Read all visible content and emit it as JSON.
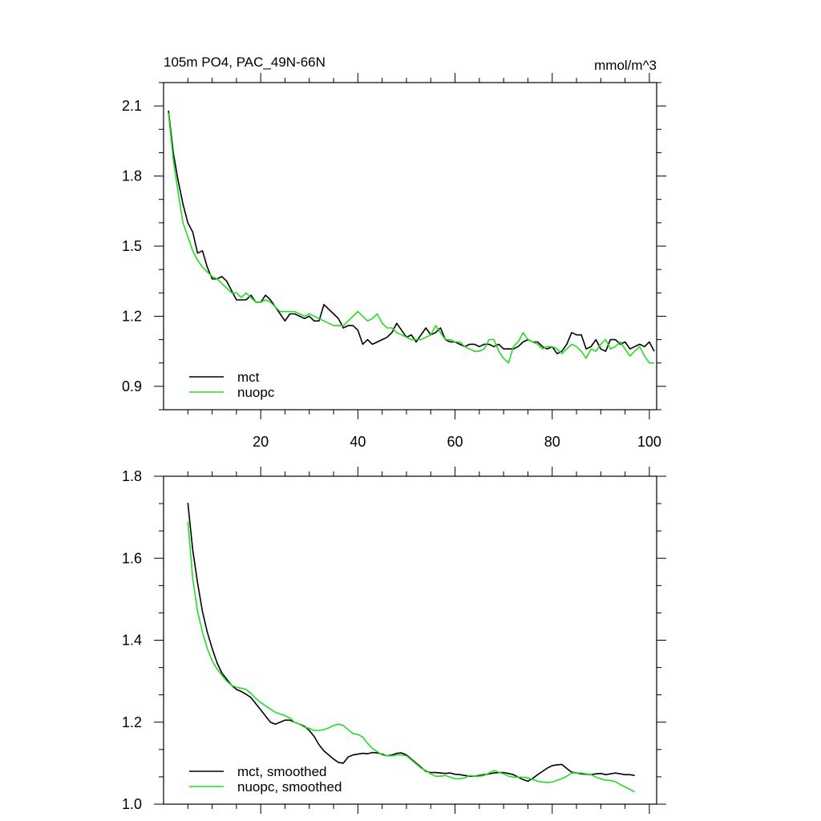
{
  "chart_data": [
    {
      "type": "line",
      "title": "105m PO4, PAC_49N-66N",
      "units": "mmol/m^3",
      "xlim": [
        0,
        101.5
      ],
      "ylim": [
        0.8,
        2.2
      ],
      "xticks": [
        20,
        40,
        60,
        80,
        100
      ],
      "xtick_labels": [
        "20",
        "40",
        "60",
        "80",
        "100"
      ],
      "yticks": [
        0.9,
        1.2,
        1.5,
        1.8,
        2.1
      ],
      "ytick_labels": [
        "0.9",
        "1.2",
        "1.5",
        "1.8",
        "2.1"
      ],
      "legend": [
        "mct",
        "nuopc"
      ],
      "series": [
        {
          "name": "mct",
          "color": "#000000",
          "x": [
            1,
            2,
            3,
            4,
            5,
            6,
            7,
            8,
            9,
            10,
            11,
            12,
            13,
            14,
            15,
            16,
            17,
            18,
            19,
            20,
            21,
            22,
            23,
            24,
            25,
            26,
            27,
            28,
            29,
            30,
            31,
            32,
            33,
            34,
            35,
            36,
            37,
            38,
            39,
            40,
            41,
            42,
            43,
            44,
            45,
            46,
            47,
            48,
            49,
            50,
            51,
            52,
            53,
            54,
            55,
            56,
            57,
            58,
            59,
            60,
            61,
            62,
            63,
            64,
            65,
            66,
            67,
            68,
            69,
            70,
            71,
            72,
            73,
            74,
            75,
            76,
            77,
            78,
            79,
            80,
            81,
            82,
            83,
            84,
            85,
            86,
            87,
            88,
            89,
            90,
            91,
            92,
            93,
            94,
            95,
            96,
            97,
            98,
            99,
            100,
            101
          ],
          "values": [
            2.08,
            1.9,
            1.78,
            1.68,
            1.6,
            1.56,
            1.47,
            1.48,
            1.41,
            1.36,
            1.36,
            1.37,
            1.35,
            1.31,
            1.27,
            1.27,
            1.27,
            1.29,
            1.26,
            1.26,
            1.29,
            1.27,
            1.24,
            1.21,
            1.18,
            1.21,
            1.21,
            1.2,
            1.19,
            1.2,
            1.18,
            1.18,
            1.25,
            1.23,
            1.21,
            1.19,
            1.15,
            1.16,
            1.16,
            1.14,
            1.08,
            1.1,
            1.08,
            1.09,
            1.1,
            1.11,
            1.13,
            1.17,
            1.14,
            1.11,
            1.12,
            1.09,
            1.12,
            1.15,
            1.12,
            1.13,
            1.15,
            1.1,
            1.09,
            1.09,
            1.08,
            1.07,
            1.08,
            1.08,
            1.07,
            1.08,
            1.08,
            1.07,
            1.08,
            1.06,
            1.06,
            1.06,
            1.07,
            1.09,
            1.1,
            1.09,
            1.09,
            1.07,
            1.06,
            1.07,
            1.04,
            1.05,
            1.08,
            1.13,
            1.12,
            1.12,
            1.06,
            1.07,
            1.1,
            1.06,
            1.05,
            1.1,
            1.1,
            1.08,
            1.09,
            1.06,
            1.07,
            1.08,
            1.07,
            1.09,
            1.05
          ]
        },
        {
          "name": "nuopc",
          "color": "#22dd22",
          "x": [
            1,
            2,
            3,
            4,
            5,
            6,
            7,
            8,
            9,
            10,
            11,
            12,
            13,
            14,
            15,
            16,
            17,
            18,
            19,
            20,
            21,
            22,
            23,
            24,
            25,
            26,
            27,
            28,
            29,
            30,
            31,
            32,
            33,
            34,
            35,
            36,
            37,
            38,
            39,
            40,
            41,
            42,
            43,
            44,
            45,
            46,
            47,
            48,
            49,
            50,
            51,
            52,
            53,
            54,
            55,
            56,
            57,
            58,
            59,
            60,
            61,
            62,
            63,
            64,
            65,
            66,
            67,
            68,
            69,
            70,
            71,
            72,
            73,
            74,
            75,
            76,
            77,
            78,
            79,
            80,
            81,
            82,
            83,
            84,
            85,
            86,
            87,
            88,
            89,
            90,
            91,
            92,
            93,
            94,
            95,
            96,
            97,
            98,
            99,
            100,
            101
          ],
          "values": [
            2.07,
            1.87,
            1.73,
            1.6,
            1.54,
            1.48,
            1.44,
            1.41,
            1.39,
            1.37,
            1.36,
            1.34,
            1.32,
            1.3,
            1.3,
            1.28,
            1.3,
            1.28,
            1.26,
            1.26,
            1.27,
            1.26,
            1.24,
            1.22,
            1.22,
            1.22,
            1.22,
            1.21,
            1.2,
            1.21,
            1.2,
            1.19,
            1.18,
            1.17,
            1.16,
            1.16,
            1.16,
            1.18,
            1.2,
            1.22,
            1.2,
            1.18,
            1.19,
            1.21,
            1.17,
            1.15,
            1.15,
            1.13,
            1.12,
            1.11,
            1.1,
            1.1,
            1.1,
            1.11,
            1.12,
            1.16,
            1.13,
            1.1,
            1.1,
            1.09,
            1.09,
            1.07,
            1.06,
            1.05,
            1.05,
            1.06,
            1.1,
            1.1,
            1.05,
            1.02,
            1.0,
            1.07,
            1.09,
            1.13,
            1.1,
            1.09,
            1.08,
            1.06,
            1.07,
            1.07,
            1.06,
            1.04,
            1.06,
            1.08,
            1.07,
            1.05,
            1.02,
            1.06,
            1.05,
            1.08,
            1.1,
            1.06,
            1.07,
            1.09,
            1.06,
            1.03,
            1.05,
            1.07,
            1.03,
            1.0,
            1.0
          ]
        }
      ]
    },
    {
      "type": "line",
      "title": "",
      "xlim": [
        0,
        101.5
      ],
      "ylim": [
        1.0,
        1.8
      ],
      "xticks": [
        20,
        40,
        60,
        80,
        100
      ],
      "xtick_labels": [],
      "yticks": [
        1.0,
        1.2,
        1.4,
        1.6,
        1.8
      ],
      "ytick_labels": [
        "1.0",
        "1.2",
        "1.4",
        "1.6",
        "1.8"
      ],
      "legend": [
        "mct, smoothed",
        "nuopc, smoothed"
      ],
      "series": [
        {
          "name": "mct, smoothed",
          "color": "#000000",
          "x": [
            5,
            6,
            7,
            8,
            9,
            10,
            11,
            12,
            13,
            14,
            15,
            16,
            17,
            18,
            19,
            20,
            21,
            22,
            23,
            24,
            25,
            26,
            27,
            28,
            29,
            30,
            31,
            32,
            33,
            34,
            35,
            36,
            37,
            38,
            39,
            40,
            41,
            42,
            43,
            44,
            45,
            46,
            47,
            48,
            49,
            50,
            51,
            52,
            53,
            54,
            55,
            56,
            57,
            58,
            59,
            60,
            61,
            62,
            63,
            64,
            65,
            66,
            67,
            68,
            69,
            70,
            71,
            72,
            73,
            74,
            75,
            76,
            77,
            78,
            79,
            80,
            81,
            82,
            83,
            84,
            85,
            86,
            87,
            88,
            89,
            90,
            91,
            92,
            93,
            94,
            95,
            96,
            97
          ],
          "values": [
            1.735,
            1.62,
            1.54,
            1.47,
            1.42,
            1.38,
            1.345,
            1.32,
            1.305,
            1.29,
            1.28,
            1.275,
            1.268,
            1.26,
            1.245,
            1.23,
            1.215,
            1.2,
            1.195,
            1.2,
            1.205,
            1.205,
            1.2,
            1.195,
            1.19,
            1.18,
            1.165,
            1.145,
            1.13,
            1.12,
            1.11,
            1.102,
            1.1,
            1.115,
            1.12,
            1.122,
            1.124,
            1.123,
            1.126,
            1.125,
            1.122,
            1.118,
            1.12,
            1.124,
            1.125,
            1.12,
            1.11,
            1.1,
            1.09,
            1.08,
            1.077,
            1.077,
            1.076,
            1.075,
            1.076,
            1.073,
            1.072,
            1.07,
            1.068,
            1.068,
            1.07,
            1.072,
            1.074,
            1.076,
            1.077,
            1.077,
            1.075,
            1.072,
            1.066,
            1.06,
            1.056,
            1.063,
            1.072,
            1.08,
            1.088,
            1.094,
            1.096,
            1.097,
            1.087,
            1.078,
            1.076,
            1.074,
            1.073,
            1.072,
            1.074,
            1.075,
            1.072,
            1.074,
            1.076,
            1.074,
            1.072,
            1.072,
            1.07
          ]
        },
        {
          "name": "nuopc, smoothed",
          "color": "#22dd22",
          "x": [
            5,
            6,
            7,
            8,
            9,
            10,
            11,
            12,
            13,
            14,
            15,
            16,
            17,
            18,
            19,
            20,
            21,
            22,
            23,
            24,
            25,
            26,
            27,
            28,
            29,
            30,
            31,
            32,
            33,
            34,
            35,
            36,
            37,
            38,
            39,
            40,
            41,
            42,
            43,
            44,
            45,
            46,
            47,
            48,
            49,
            50,
            51,
            52,
            53,
            54,
            55,
            56,
            57,
            58,
            59,
            60,
            61,
            62,
            63,
            64,
            65,
            66,
            67,
            68,
            69,
            70,
            71,
            72,
            73,
            74,
            75,
            76,
            77,
            78,
            79,
            80,
            81,
            82,
            83,
            84,
            85,
            86,
            87,
            88,
            89,
            90,
            91,
            92,
            93,
            94,
            95,
            96,
            97
          ],
          "values": [
            1.69,
            1.55,
            1.47,
            1.42,
            1.38,
            1.35,
            1.33,
            1.315,
            1.3,
            1.29,
            1.285,
            1.283,
            1.28,
            1.27,
            1.258,
            1.248,
            1.24,
            1.232,
            1.224,
            1.22,
            1.216,
            1.21,
            1.2,
            1.195,
            1.188,
            1.185,
            1.18,
            1.18,
            1.182,
            1.186,
            1.192,
            1.195,
            1.192,
            1.182,
            1.172,
            1.17,
            1.164,
            1.148,
            1.136,
            1.128,
            1.12,
            1.118,
            1.118,
            1.12,
            1.12,
            1.118,
            1.108,
            1.098,
            1.088,
            1.082,
            1.074,
            1.068,
            1.068,
            1.07,
            1.066,
            1.062,
            1.062,
            1.064,
            1.07,
            1.068,
            1.068,
            1.07,
            1.076,
            1.082,
            1.078,
            1.074,
            1.068,
            1.066,
            1.066,
            1.066,
            1.064,
            1.06,
            1.056,
            1.054,
            1.053,
            1.054,
            1.058,
            1.062,
            1.068,
            1.076,
            1.076,
            1.076,
            1.074,
            1.072,
            1.066,
            1.062,
            1.058,
            1.058,
            1.055,
            1.048,
            1.042,
            1.036,
            1.03
          ]
        }
      ]
    }
  ]
}
